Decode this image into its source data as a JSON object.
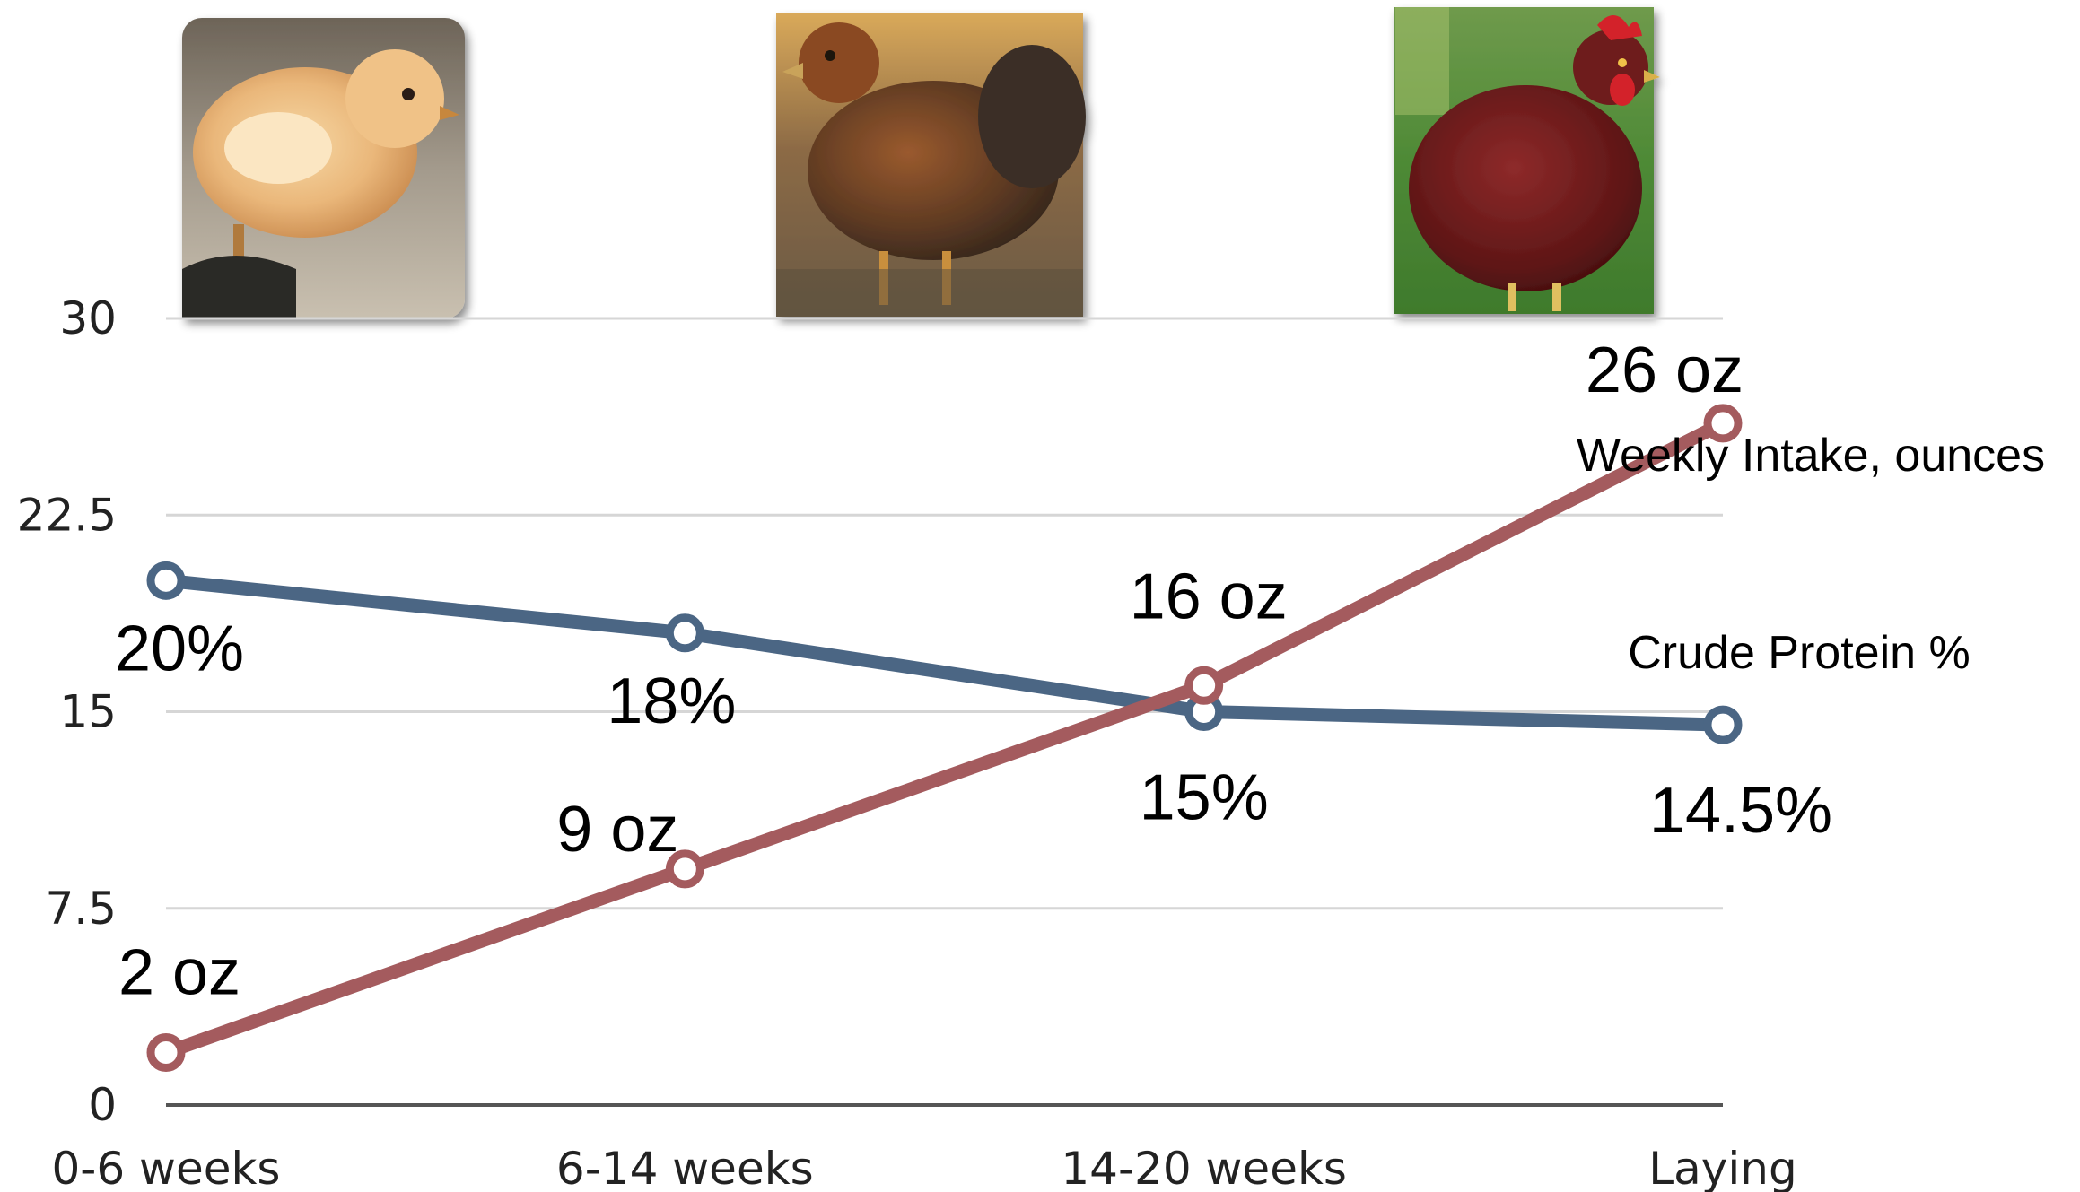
{
  "chart_data": {
    "type": "line",
    "categories": [
      "0-6 weeks",
      "6-14 weeks",
      "14-20 weeks",
      "Laying"
    ],
    "yticks": [
      "0",
      "7.5",
      "15",
      "22.5",
      "30"
    ],
    "ylim": [
      0,
      30
    ],
    "grid": true,
    "series": [
      {
        "name": "Crude Protein %",
        "color": "#4b6684",
        "values": [
          20,
          18,
          15,
          14.5
        ],
        "labels": [
          "20%",
          "18%",
          "15%",
          "14.5%"
        ]
      },
      {
        "name": "Weekly Intake, ounces",
        "color": "#a45b5e",
        "values": [
          2,
          9,
          16,
          26
        ],
        "labels": [
          "2 oz",
          "9 oz",
          "16 oz",
          "26 oz"
        ]
      }
    ],
    "images": [
      "chick-photo",
      "pullet-photo",
      "laying-hen-photo"
    ]
  }
}
